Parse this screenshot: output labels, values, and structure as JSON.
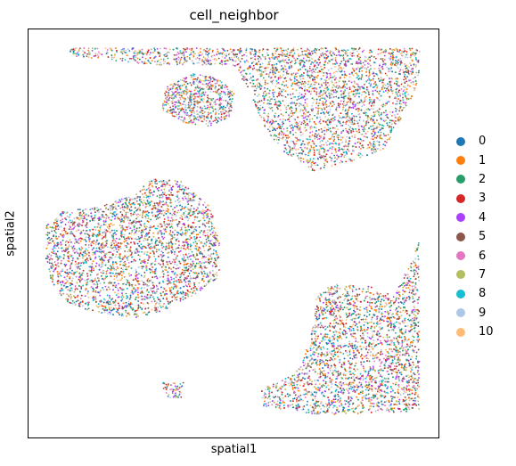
{
  "chart_data": {
    "type": "scatter",
    "title": "cell_neighbor",
    "xlabel": "spatial1",
    "ylabel": "spatial2",
    "grid": false,
    "ticks": false,
    "legend_position": "right",
    "categories": [
      "0",
      "1",
      "2",
      "3",
      "4",
      "5",
      "6",
      "7",
      "8",
      "9",
      "10"
    ],
    "colors": [
      "#1f77b4",
      "#ff7f0e",
      "#279e68",
      "#d62728",
      "#aa40fc",
      "#8c564b",
      "#e377c2",
      "#b5bd61",
      "#17becf",
      "#aec7e8",
      "#ffbb78"
    ]
  }
}
